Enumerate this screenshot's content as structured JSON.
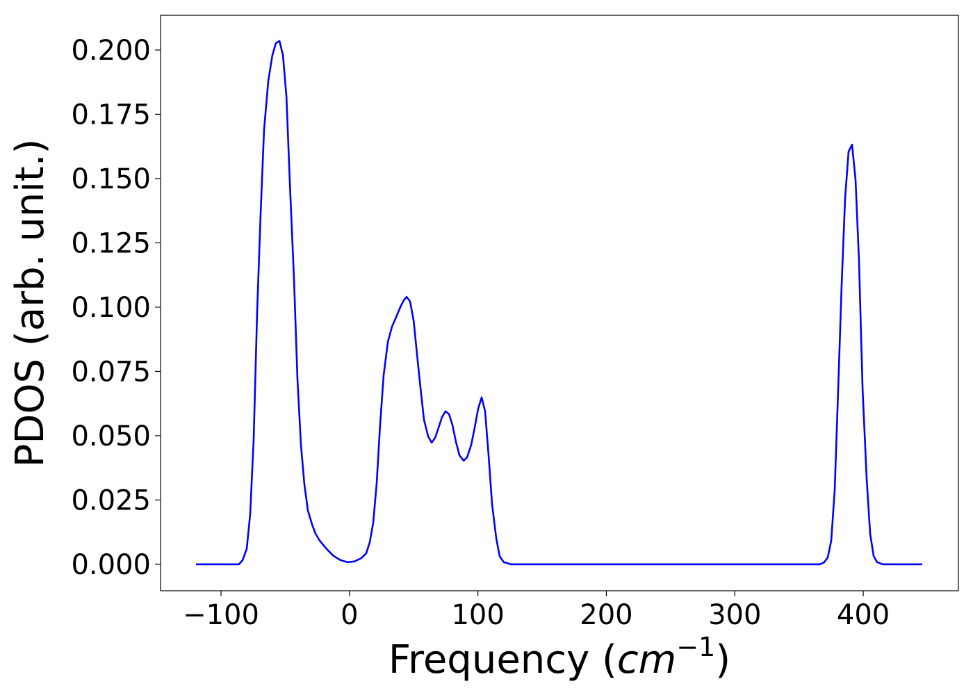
{
  "chart_data": {
    "type": "line",
    "xlabel": [
      "Frequency (",
      "cm",
      "−1",
      ")"
    ],
    "ylabel": "PDOS (arb. unit.)",
    "xlim": [
      -147.1,
      474.1
    ],
    "ylim": [
      -0.0103,
      0.2135
    ],
    "xticks": [
      {
        "value": -100,
        "label": "−100"
      },
      0,
      100,
      200,
      300,
      400
    ],
    "yticks": [
      {
        "value": 0,
        "label": "0.000"
      },
      {
        "value": 0.025,
        "label": "0.025"
      },
      {
        "value": 0.05,
        "label": "0.050"
      },
      {
        "value": 0.075,
        "label": "0.075"
      },
      {
        "value": 0.1,
        "label": "0.100"
      },
      {
        "value": 0.125,
        "label": "0.125"
      },
      {
        "value": 0.15,
        "label": "0.150"
      },
      {
        "value": 0.175,
        "label": "0.175"
      },
      {
        "value": 0.2,
        "label": "0.200"
      }
    ],
    "grid": false,
    "x": [
      -119.5,
      -86,
      -83.2,
      -80,
      -77.3,
      -74.6,
      -71.9,
      -69.2,
      -66.5,
      -63.2,
      -60,
      -57.3,
      -54.5,
      -51.8,
      -49.1,
      -46.4,
      -43.2,
      -40.5,
      -37.8,
      -35.1,
      -32.4,
      -29.1,
      -26.4,
      -23.2,
      -17.7,
      -12.3,
      -6.9,
      -1.5,
      3.9,
      9.3,
      13.1,
      15.8,
      18.5,
      21.2,
      23.9,
      26.6,
      29.9,
      33.1,
      36.4,
      39.6,
      42.3,
      44.5,
      47.2,
      50,
      52.6,
      55.4,
      58,
      61.3,
      64,
      66.7,
      69.4,
      72.1,
      74.8,
      77.5,
      80.2,
      82.9,
      85.6,
      88.9,
      91.6,
      94.8,
      97.5,
      100.2,
      102.9,
      105.6,
      108.3,
      111,
      114.3,
      117,
      120.2,
      125.6,
      366.5,
      369.7,
      372.4,
      375.1,
      377.8,
      380.5,
      383.2,
      385.9,
      388.6,
      391.3,
      394,
      396.7,
      399.5,
      402.7,
      405.4,
      408.1,
      410.8,
      415.2,
      446
    ],
    "series": [
      {
        "color": "#0000ff",
        "values": [
          0,
          0,
          0.0016,
          0.006,
          0.0195,
          0.0486,
          0.098,
          0.136,
          0.169,
          0.188,
          0.198,
          0.2027,
          0.2035,
          0.198,
          0.182,
          0.148,
          0.111,
          0.072,
          0.0465,
          0.031,
          0.021,
          0.0154,
          0.0119,
          0.0092,
          0.0059,
          0.0032,
          0.0016,
          0.0008,
          0.0011,
          0.0024,
          0.0043,
          0.0086,
          0.0162,
          0.0316,
          0.0546,
          0.0735,
          0.0865,
          0.0924,
          0.0962,
          0.1,
          0.1027,
          0.104,
          0.1022,
          0.0946,
          0.0816,
          0.0681,
          0.0562,
          0.0497,
          0.0473,
          0.0492,
          0.0532,
          0.0573,
          0.0595,
          0.0584,
          0.0541,
          0.0476,
          0.0424,
          0.0403,
          0.0416,
          0.0465,
          0.0532,
          0.0605,
          0.0649,
          0.0595,
          0.0424,
          0.0235,
          0.01,
          0.003,
          0.0008,
          0,
          0,
          0.0008,
          0.0027,
          0.0092,
          0.0289,
          0.0681,
          0.1086,
          0.1424,
          0.1605,
          0.1632,
          0.1497,
          0.1181,
          0.0681,
          0.033,
          0.0119,
          0.0032,
          0.0008,
          0,
          0
        ]
      }
    ]
  }
}
